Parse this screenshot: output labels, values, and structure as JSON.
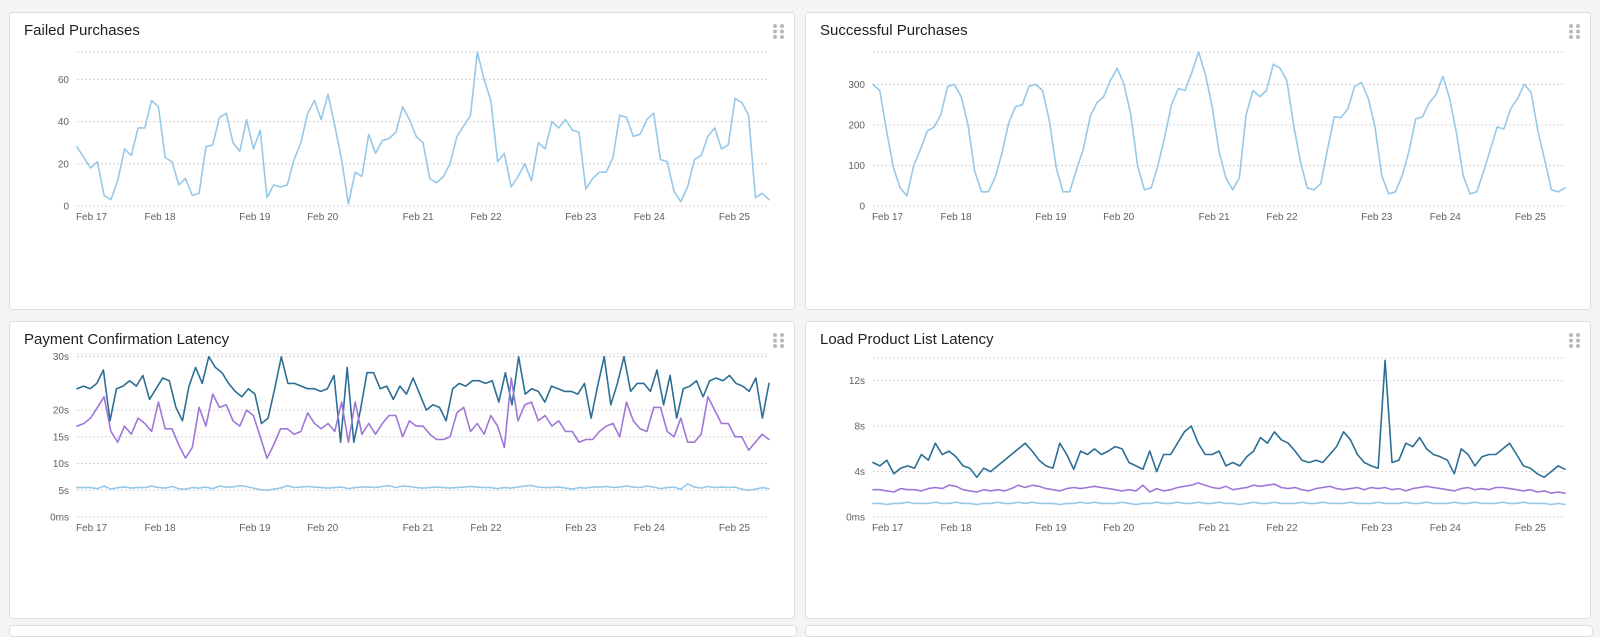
{
  "panels": [
    {
      "id": "failed",
      "title": "Failed Purchases"
    },
    {
      "id": "successful",
      "title": "Successful Purchases"
    },
    {
      "id": "payment",
      "title": "Payment Confirmation Latency"
    },
    {
      "id": "load",
      "title": "Load Product List Latency"
    }
  ],
  "colors": {
    "light": "#96c8ea",
    "dark": "#2d6e94",
    "purple": "#9f77d9",
    "grid": "#d4d4d8",
    "handle": "#b8b8bd"
  },
  "icons": {
    "drag": "drag-handle-icon"
  },
  "chart_data": [
    {
      "type": "line",
      "title": "Failed Purchases",
      "xlabel": "",
      "ylabel": "",
      "x_ticks": [
        "Feb 17",
        "Feb 18",
        "Feb 19",
        "Feb 20",
        "Feb 21",
        "Feb 22",
        "Feb 23",
        "Feb 24",
        "Feb 25"
      ],
      "y_ticks": [
        "0",
        "20",
        "40",
        "60"
      ],
      "ylim": [
        0,
        73
      ],
      "grid": true,
      "series": [
        {
          "color": "light",
          "values": [
            28,
            23,
            18,
            21,
            5,
            3,
            12,
            27,
            24,
            37,
            37,
            50,
            47,
            23,
            21,
            10,
            13,
            5,
            6,
            28,
            29,
            42,
            44,
            30,
            26,
            41,
            27,
            36,
            4,
            10,
            9,
            10,
            22,
            30,
            44,
            50,
            41,
            53,
            38,
            22,
            1,
            16,
            14,
            34,
            25,
            31,
            32,
            35,
            47,
            41,
            33,
            30,
            13,
            11,
            14,
            20,
            33,
            38,
            43,
            73,
            60,
            50,
            21,
            25,
            9,
            14,
            20,
            12,
            30,
            27,
            40,
            37,
            41,
            36,
            35,
            8,
            13,
            16,
            16,
            23,
            43,
            42,
            33,
            34,
            41,
            44,
            22,
            21,
            7,
            2,
            9,
            22,
            24,
            33,
            37,
            27,
            29,
            51,
            49,
            43,
            4,
            6,
            3
          ]
        }
      ]
    },
    {
      "type": "line",
      "title": "Successful Purchases",
      "xlabel": "",
      "ylabel": "",
      "x_ticks": [
        "Feb 17",
        "Feb 18",
        "Feb 19",
        "Feb 20",
        "Feb 21",
        "Feb 22",
        "Feb 23",
        "Feb 24",
        "Feb 25"
      ],
      "y_ticks": [
        "0",
        "100",
        "200",
        "300"
      ],
      "ylim": [
        0,
        380
      ],
      "grid": true,
      "series": [
        {
          "color": "light",
          "values": [
            300,
            285,
            185,
            95,
            45,
            25,
            100,
            140,
            185,
            195,
            225,
            295,
            300,
            270,
            200,
            85,
            35,
            35,
            70,
            130,
            205,
            245,
            250,
            295,
            300,
            285,
            210,
            95,
            35,
            35,
            90,
            140,
            220,
            255,
            270,
            310,
            340,
            300,
            225,
            100,
            40,
            45,
            100,
            170,
            250,
            290,
            285,
            330,
            380,
            325,
            245,
            135,
            70,
            40,
            70,
            225,
            285,
            270,
            285,
            350,
            340,
            310,
            200,
            110,
            45,
            40,
            55,
            140,
            220,
            218,
            240,
            295,
            305,
            265,
            195,
            75,
            30,
            35,
            75,
            135,
            215,
            220,
            255,
            275,
            320,
            265,
            180,
            75,
            30,
            35,
            85,
            140,
            195,
            190,
            240,
            265,
            300,
            280,
            185,
            115,
            40,
            35,
            45
          ]
        }
      ]
    },
    {
      "type": "line",
      "title": "Payment Confirmation Latency",
      "xlabel": "",
      "ylabel": "",
      "x_ticks": [
        "Feb 17",
        "Feb 18",
        "Feb 19",
        "Feb 20",
        "Feb 21",
        "Feb 22",
        "Feb 23",
        "Feb 24",
        "Feb 25"
      ],
      "y_ticks": [
        "0ms",
        "5s",
        "10s",
        "15s",
        "20s",
        "30s"
      ],
      "ylim": [
        0,
        30.5
      ],
      "grid": true,
      "series": [
        {
          "color": "dark",
          "values": [
            24,
            24.5,
            24,
            25,
            27.5,
            18,
            24,
            24.5,
            25.5,
            24.5,
            26.5,
            22,
            24,
            26,
            25.5,
            20.5,
            18,
            24.5,
            28,
            25,
            30,
            28,
            27,
            25,
            23.5,
            22.5,
            24,
            23,
            17.5,
            18.5,
            24,
            30,
            25,
            25,
            24.5,
            24,
            24,
            23.5,
            24,
            26.5,
            14,
            28,
            14,
            20,
            27,
            27,
            24,
            24.5,
            22,
            24.5,
            23,
            26,
            23,
            20,
            21,
            20.5,
            18,
            24,
            25,
            24.5,
            25.5,
            25.5,
            25,
            25.5,
            21.5,
            27,
            21,
            30,
            23,
            24,
            23.5,
            21.5,
            24.5,
            24,
            23.5,
            23.5,
            23,
            25,
            18.5,
            24.5,
            30,
            21,
            25,
            30,
            23.5,
            25,
            25,
            23.5,
            27.5,
            21,
            26.5,
            18.5,
            24,
            24.5,
            25.5,
            22.5,
            25.5,
            26,
            25.5,
            26.5,
            25,
            24.5,
            23.5,
            26,
            18.5,
            25
          ]
        },
        {
          "color": "purple",
          "values": [
            17,
            17.5,
            18.5,
            20.5,
            22.5,
            16,
            14,
            17,
            15.5,
            18.5,
            17.5,
            16,
            21.5,
            16.5,
            16.5,
            13.5,
            11,
            13,
            20.5,
            17,
            23,
            20.5,
            21,
            18,
            17,
            20,
            19,
            15,
            11,
            13.5,
            16.5,
            16.5,
            15.5,
            16,
            19.5,
            17.5,
            16.5,
            17.5,
            16,
            21.5,
            14,
            21.5,
            15.5,
            17.5,
            15.5,
            17.5,
            19,
            19,
            15,
            18,
            17,
            17,
            15.5,
            14.5,
            14.5,
            15,
            19.5,
            20.5,
            16,
            17.5,
            15.5,
            19,
            17,
            13,
            26,
            18,
            21,
            21.5,
            18,
            19,
            17,
            18,
            16,
            16,
            14,
            14.5,
            14.5,
            16,
            17,
            17.5,
            15,
            21.5,
            18,
            16.5,
            16,
            20.5,
            20.5,
            16,
            15,
            18.5,
            14,
            14,
            15.5,
            22.5,
            20,
            17.5,
            17.5,
            15,
            15,
            12.5,
            14,
            15.5,
            14.5
          ]
        },
        {
          "color": "light",
          "values": [
            5.5,
            5.5,
            5.5,
            5.3,
            5.8,
            5.2,
            5.5,
            5.6,
            5.4,
            5.5,
            5.5,
            5.8,
            5.5,
            5.4,
            5.7,
            5.3,
            5.2,
            5.5,
            5.4,
            5.6,
            5.3,
            5.8,
            5.6,
            5.6,
            5.9,
            5.7,
            5.4,
            5.1,
            5,
            5.2,
            5.4,
            5.9,
            5.5,
            5.6,
            5.7,
            5.6,
            5.5,
            5.4,
            5.5,
            5.6,
            5.3,
            5.5,
            5.6,
            5.6,
            5.5,
            5.7,
            5.9,
            5.5,
            5.8,
            5.7,
            5.5,
            5.4,
            5.5,
            5.6,
            5.5,
            5.4,
            5.5,
            5.6,
            5.7,
            5.6,
            5.5,
            5.5,
            5.3,
            5.5,
            5.4,
            5.6,
            5.8,
            5.9,
            5.6,
            5.5,
            5.5,
            5.6,
            5.4,
            5.2,
            5.5,
            5.4,
            5.6,
            5.6,
            5.7,
            5.5,
            5.6,
            5.8,
            5.6,
            5.5,
            5.8,
            5.6,
            5.3,
            5.5,
            5.6,
            5.2,
            6.2,
            5.6,
            5.4,
            5.7,
            5.5,
            5.6,
            5.5,
            5.6,
            5.2,
            5,
            5.2,
            5.5,
            5.3
          ]
        }
      ]
    },
    {
      "type": "line",
      "title": "Load Product List Latency",
      "xlabel": "",
      "ylabel": "",
      "x_ticks": [
        "Feb 17",
        "Feb 18",
        "Feb 19",
        "Feb 20",
        "Feb 21",
        "Feb 22",
        "Feb 23",
        "Feb 24",
        "Feb 25"
      ],
      "y_ticks": [
        "0ms",
        "4s",
        "8s",
        "12s"
      ],
      "ylim": [
        0,
        14
      ],
      "grid": true,
      "series": [
        {
          "color": "dark",
          "values": [
            4.8,
            4.5,
            5,
            3.8,
            4.3,
            4.5,
            4.3,
            5.5,
            5,
            6.5,
            5.5,
            5.8,
            5.3,
            4.5,
            4.3,
            3.5,
            4.3,
            4,
            4.5,
            5,
            5.5,
            6,
            6.5,
            5.8,
            5,
            4.5,
            4.3,
            6.5,
            5.5,
            4.2,
            5.8,
            5.5,
            6,
            5.5,
            5.8,
            6.2,
            6,
            4.8,
            4.5,
            4.2,
            5.8,
            4,
            5.5,
            5.5,
            6.5,
            7.5,
            8,
            6.5,
            5.5,
            5.5,
            5.8,
            4.5,
            4.8,
            4.5,
            5.3,
            5.8,
            7,
            6.5,
            7.5,
            6.8,
            6.5,
            5.8,
            5,
            4.8,
            5,
            4.8,
            5.5,
            6.2,
            7.5,
            6.8,
            5.5,
            4.8,
            4.5,
            4.3,
            13.8,
            4.8,
            5,
            6.5,
            6.2,
            7,
            6,
            5.5,
            5.3,
            5,
            3.8,
            6,
            5.5,
            4.5,
            5.3,
            5.5,
            5.5,
            6,
            6.5,
            5.5,
            4.5,
            4.3,
            3.8,
            3.5,
            4,
            4.5,
            4.2
          ]
        },
        {
          "color": "purple",
          "values": [
            2.4,
            2.4,
            2.3,
            2.2,
            2.5,
            2.4,
            2.4,
            2.3,
            2.5,
            2.6,
            2.5,
            2.8,
            2.7,
            2.4,
            2.3,
            2.2,
            2.4,
            2.3,
            2.4,
            2.3,
            2.5,
            2.8,
            2.6,
            2.8,
            2.7,
            2.5,
            2.4,
            2.3,
            2.5,
            2.6,
            2.5,
            2.6,
            2.7,
            2.6,
            2.5,
            2.4,
            2.3,
            2.4,
            2.3,
            2.8,
            2.2,
            2.5,
            2.3,
            2.4,
            2.6,
            2.7,
            2.8,
            3,
            2.8,
            2.6,
            2.5,
            2.7,
            2.4,
            2.5,
            2.6,
            2.8,
            2.7,
            2.8,
            2.9,
            2.6,
            2.5,
            2.6,
            2.4,
            2.3,
            2.5,
            2.6,
            2.7,
            2.5,
            2.4,
            2.5,
            2.6,
            2.4,
            2.6,
            2.5,
            2.6,
            2.4,
            2.5,
            2.3,
            2.5,
            2.6,
            2.7,
            2.6,
            2.5,
            2.4,
            2.3,
            2.5,
            2.6,
            2.4,
            2.5,
            2.4,
            2.6,
            2.6,
            2.5,
            2.4,
            2.3,
            2.4,
            2.2,
            2.3,
            2.1,
            2.2,
            2.1
          ]
        },
        {
          "color": "light",
          "values": [
            1.2,
            1.2,
            1.1,
            1.2,
            1.2,
            1.3,
            1.2,
            1.2,
            1.2,
            1.3,
            1.2,
            1.2,
            1.3,
            1.2,
            1.2,
            1.1,
            1.2,
            1.2,
            1.3,
            1.2,
            1.2,
            1.3,
            1.2,
            1.3,
            1.2,
            1.2,
            1.2,
            1.1,
            1.2,
            1.2,
            1.3,
            1.2,
            1.3,
            1.2,
            1.2,
            1.2,
            1.3,
            1.2,
            1.1,
            1.2,
            1.2,
            1.3,
            1.2,
            1.2,
            1.3,
            1.2,
            1.2,
            1.3,
            1.2,
            1.2,
            1.3,
            1.2,
            1.2,
            1.1,
            1.2,
            1.3,
            1.2,
            1.2,
            1.3,
            1.2,
            1.2,
            1.2,
            1.3,
            1.2,
            1.2,
            1.3,
            1.2,
            1.2,
            1.2,
            1.3,
            1.2,
            1.2,
            1.2,
            1.3,
            1.2,
            1.2,
            1.2,
            1.3,
            1.2,
            1.2,
            1.3,
            1.2,
            1.2,
            1.2,
            1.3,
            1.2,
            1.2,
            1.3,
            1.2,
            1.2,
            1.2,
            1.3,
            1.2,
            1.2,
            1.3,
            1.2,
            1.2,
            1.2,
            1.1,
            1.2,
            1.1
          ]
        }
      ]
    }
  ]
}
